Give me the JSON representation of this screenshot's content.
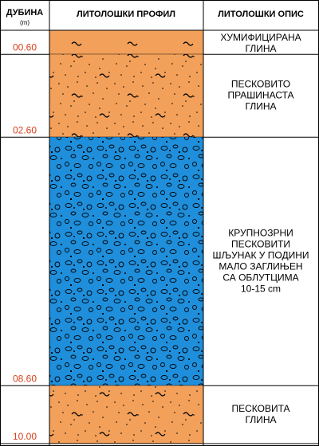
{
  "header": {
    "depth": "ДУБИНА",
    "depth_unit": "(m)",
    "profile": "ЛИТОЛОШКИ ПРОФИЛ",
    "description": "ЛИТОЛОШКИ ОПИС"
  },
  "layers": [
    {
      "depth": "00.60",
      "pattern": "clay",
      "description": [
        "ХУМИФИЦИРАНА",
        "ГЛИНА"
      ]
    },
    {
      "depth": "02.60",
      "pattern": "sandy-clay",
      "description": [
        "ПЕСКОВИТО",
        "ПРАШИНАСТА",
        "ГЛИНА"
      ]
    },
    {
      "depth": "08.60",
      "pattern": "gravel",
      "description": [
        "КРУПНОЗРНИ",
        "ПЕСКОВИТИ",
        "ШЉУНАК У ПОДИНИ",
        "МАЛО ЗАГЛИЊЕН",
        "СА ОБЛУТЦИМА",
        "10-15 cm"
      ]
    },
    {
      "depth": "10.00",
      "pattern": "sandy-clay",
      "description": [
        "ПЕСКОВИТА",
        "ГЛИНА"
      ]
    }
  ]
}
